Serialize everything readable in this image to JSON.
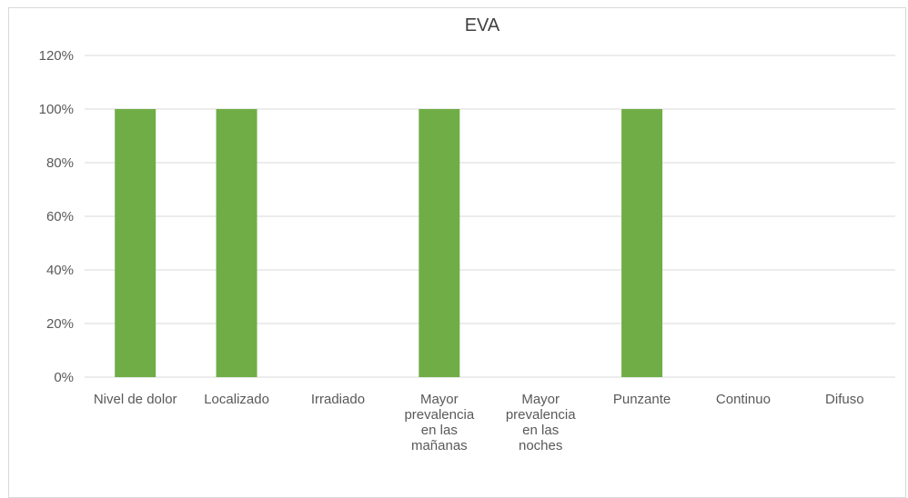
{
  "chart_data": {
    "type": "bar",
    "title": "EVA",
    "categories": [
      "Nivel de dolor",
      "Localizado",
      "Irradiado",
      "Mayor prevalencia en las mañanas",
      "Mayor prevalencia en las noches",
      "Punzante",
      "Continuo",
      "Difuso"
    ],
    "category_lines": [
      [
        "Nivel de dolor"
      ],
      [
        "Localizado"
      ],
      [
        "Irradiado"
      ],
      [
        "Mayor",
        "prevalencia",
        "en las",
        "mañanas"
      ],
      [
        "Mayor",
        "prevalencia",
        "en las",
        "noches"
      ],
      [
        "Punzante"
      ],
      [
        "Continuo"
      ],
      [
        "Difuso"
      ]
    ],
    "values": [
      100,
      100,
      0,
      100,
      0,
      100,
      0,
      0
    ],
    "ylim": [
      0,
      120
    ],
    "yticks": [
      "0%",
      "20%",
      "40%",
      "60%",
      "80%",
      "100%",
      "120%"
    ],
    "ytick_values": [
      0,
      20,
      40,
      60,
      80,
      100,
      120
    ],
    "grid": true,
    "bar_color": "#70ad47",
    "grid_color": "#d9d9d9",
    "text_color": "#595959"
  }
}
